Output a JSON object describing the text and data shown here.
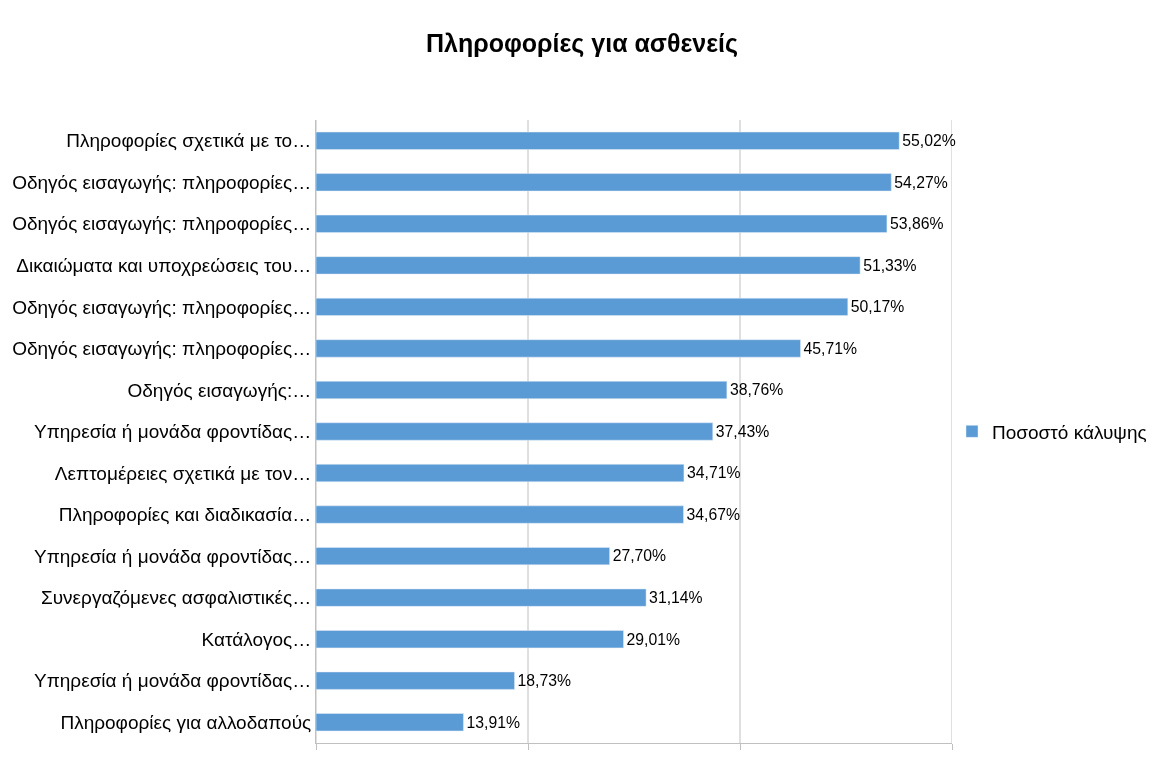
{
  "chart_data": {
    "type": "bar",
    "orientation": "horizontal",
    "title": "Πληροφορίες για ασθενείς",
    "categories": [
      "Πληροφορίες σχετικά με το…",
      "Οδηγός εισαγωγής: πληροφορίες…",
      "Οδηγός εισαγωγής: πληροφορίες…",
      "Δικαιώματα και υποχρεώσεις του…",
      "Οδηγός εισαγωγής: πληροφορίες…",
      "Οδηγός εισαγωγής: πληροφορίες…",
      "Οδηγός εισαγωγής:…",
      "Υπηρεσία ή μονάδα φροντίδας…",
      "Λεπτομέρειες σχετικά με τον…",
      "Πληροφορίες και διαδικασία…",
      "Υπηρεσία ή μονάδα φροντίδας…",
      "Συνεργαζόμενες ασφαλιστικές…",
      "Κατάλογος…",
      "Υπηρεσία ή μονάδα φροντίδας…",
      "Πληροφορίες για αλλοδαπούς"
    ],
    "series": [
      {
        "name": "Ποσοστό κάλυψης",
        "color": "#5b9bd5",
        "values": [
          55.02,
          54.27,
          53.86,
          51.33,
          50.17,
          45.71,
          38.76,
          37.43,
          34.71,
          34.67,
          27.7,
          31.14,
          29.01,
          18.73,
          13.91
        ],
        "value_labels": [
          "55,02%",
          "54,27%",
          "53,86%",
          "51,33%",
          "50,17%",
          "45,71%",
          "38,76%",
          "37,43%",
          "34,71%",
          "34,67%",
          "27,70%",
          "31,14%",
          "29,01%",
          "18,73%",
          "13,91%"
        ]
      }
    ],
    "xlim": [
      0,
      60
    ],
    "xticks": [
      {
        "value": 0,
        "label": null
      },
      {
        "value": 20,
        "label": null
      },
      {
        "value": 40,
        "label": null
      },
      {
        "value": 60,
        "label": null
      }
    ],
    "grid": "x",
    "tick_labels": "y",
    "legend": "right"
  }
}
